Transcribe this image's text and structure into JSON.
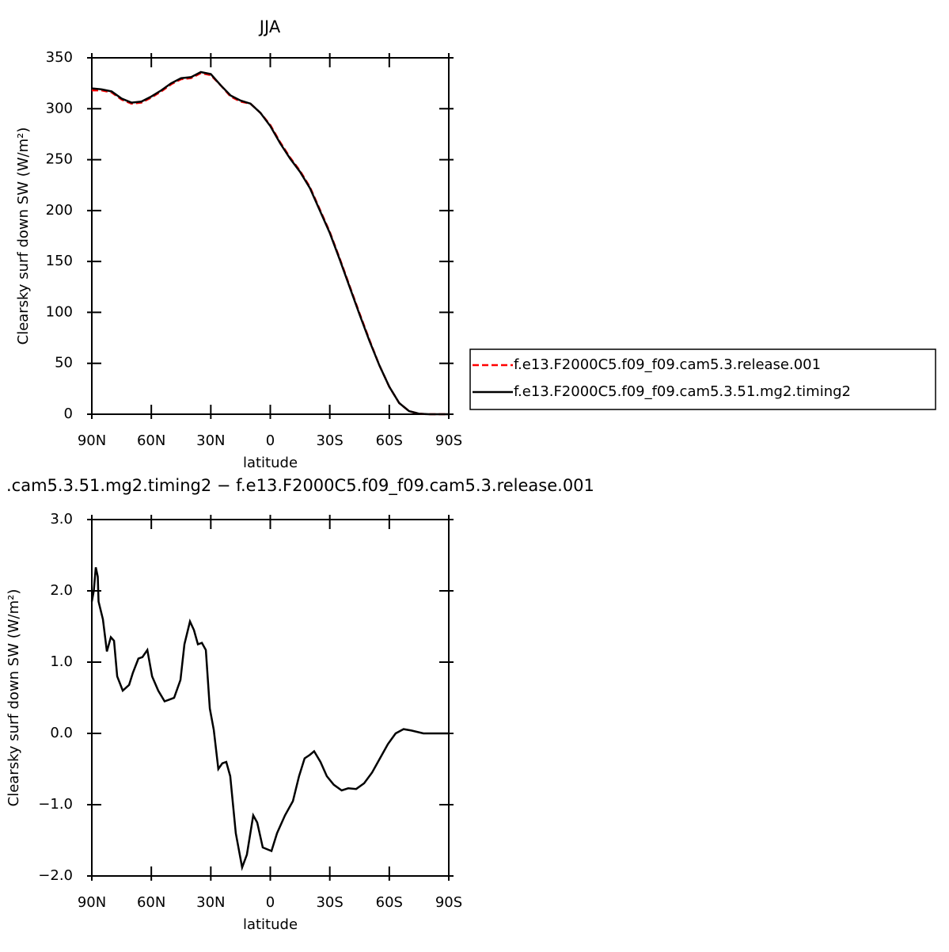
{
  "chart_data": [
    {
      "type": "line",
      "title": "JJA",
      "x_label": "latitude",
      "y_label": "Clearsky surf down SW (W/m²)",
      "x": [
        90,
        85,
        80,
        75,
        70,
        65,
        60,
        55,
        50,
        45,
        40,
        35,
        30,
        25,
        20,
        15,
        10,
        5,
        0,
        -5,
        -10,
        -15,
        -20,
        -25,
        -30,
        -35,
        -40,
        -45,
        -50,
        -55,
        -60,
        -65,
        -70,
        -75,
        -80,
        -85,
        -90
      ],
      "series": [
        {
          "name": "f.e13.F2000C5.f09_f09.cam5.3.release.001",
          "color": "#ff0000",
          "dash": true,
          "values": [
            318,
            318,
            316,
            309,
            305,
            306,
            311,
            317,
            324,
            329,
            330,
            335,
            333,
            323,
            312,
            307,
            305,
            296,
            284,
            267,
            252,
            239,
            223,
            201,
            179,
            153,
            126,
            99,
            73,
            48,
            27,
            11,
            3,
            0.5,
            0,
            0,
            0
          ]
        },
        {
          "name": "f.e13.F2000C5.f09_f09.cam5.3.51.mg2.timing2",
          "color": "#000000",
          "dash": false,
          "values": [
            320,
            319,
            317,
            310,
            306,
            307,
            312,
            318,
            325,
            330,
            331,
            336,
            334,
            323,
            313,
            308,
            305,
            296,
            283,
            266,
            251,
            238,
            222,
            200,
            178,
            152,
            125,
            98,
            72,
            48,
            27,
            11,
            3,
            0.5,
            0,
            0,
            0
          ]
        }
      ],
      "xlim": [
        90,
        -90
      ],
      "xticks": [
        {
          "value": 90,
          "label": "90N"
        },
        {
          "value": 60,
          "label": "60N"
        },
        {
          "value": 30,
          "label": "30N"
        },
        0,
        {
          "value": -30,
          "label": "30S"
        },
        {
          "value": -60,
          "label": "60S"
        },
        {
          "value": -90,
          "label": "90S"
        }
      ],
      "ylim": [
        0,
        350
      ],
      "yticks": [
        0,
        50,
        100,
        150,
        200,
        250,
        300,
        350
      ],
      "legend_position": "outside-right"
    },
    {
      "type": "line",
      "title": ".cam5.3.51.mg2.timing2 − f.e13.F2000C5.f09_f09.cam5.3.release.001",
      "x_label": "latitude",
      "y_label": "Clearsky surf down SW (W/m²)",
      "x": [
        90,
        89,
        88,
        87,
        86.6,
        84.4,
        82.4,
        80.4,
        78.8,
        77.2,
        74.4,
        71.2,
        69.3,
        66.5,
        64.5,
        62,
        59.6,
        56.5,
        53.3,
        51.3,
        48.5,
        45.3,
        43.3,
        40.5,
        38.5,
        36.5,
        34.5,
        32.5,
        30.5,
        28.5,
        26.2,
        24.2,
        22.2,
        20.2,
        17.4,
        14.2,
        11.8,
        8.6,
        6.6,
        3.8,
        -0.6,
        -3.4,
        -7.4,
        -11.4,
        -14.5,
        -17.3,
        -20,
        -22.1,
        -25.3,
        -28.5,
        -32,
        -36,
        -39.3,
        -43.3,
        -47.3,
        -51.3,
        -55.3,
        -59.3,
        -63.2,
        -67.2,
        -71.2,
        -77.2,
        -90
      ],
      "series": [
        {
          "name": null,
          "color": "#000000",
          "dash": false,
          "values": [
            1.85,
            2.0,
            2.33,
            2.2,
            1.85,
            1.6,
            1.15,
            1.35,
            1.3,
            0.8,
            0.6,
            0.68,
            0.85,
            1.05,
            1.07,
            1.17,
            0.8,
            0.6,
            0.45,
            0.47,
            0.5,
            0.75,
            1.25,
            1.57,
            1.45,
            1.25,
            1.27,
            1.17,
            0.35,
            0.05,
            -0.5,
            -0.42,
            -0.4,
            -0.6,
            -1.4,
            -1.88,
            -1.7,
            -1.15,
            -1.25,
            -1.6,
            -1.65,
            -1.4,
            -1.15,
            -0.95,
            -0.6,
            -0.35,
            -0.3,
            -0.25,
            -0.4,
            -0.6,
            -0.72,
            -0.8,
            -0.77,
            -0.78,
            -0.7,
            -0.55,
            -0.35,
            -0.15,
            0.0,
            0.06,
            0.04,
            0.0,
            0.0
          ]
        }
      ],
      "xlim": [
        90,
        -90
      ],
      "xticks": [
        {
          "value": 90,
          "label": "90N"
        },
        {
          "value": 60,
          "label": "60N"
        },
        {
          "value": 30,
          "label": "30N"
        },
        0,
        {
          "value": -30,
          "label": "30S"
        },
        {
          "value": -60,
          "label": "60S"
        },
        {
          "value": -90,
          "label": "90S"
        }
      ],
      "ylim": [
        -2,
        3
      ],
      "yticks": [
        {
          "value": -2,
          "label": "−2.0"
        },
        {
          "value": -1,
          "label": "−1.0"
        },
        {
          "value": 0,
          "label": "0.0"
        },
        {
          "value": 1,
          "label": "1.0"
        },
        {
          "value": 2,
          "label": "2.0"
        },
        {
          "value": 3,
          "label": "3.0"
        }
      ]
    }
  ]
}
